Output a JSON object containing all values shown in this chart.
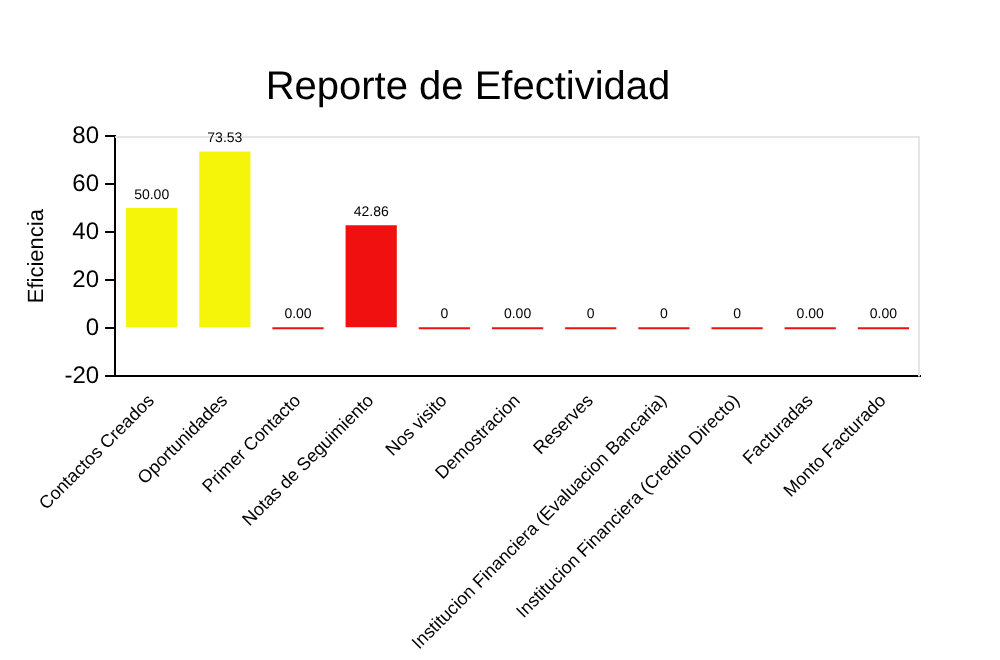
{
  "chart_data": {
    "type": "bar",
    "title": "Reporte de Efectividad",
    "ylabel": "Eficiencia",
    "categories": [
      "Contactos Creados",
      "Oportunidades",
      "Primer Contacto",
      "Notas de Seguimiento",
      "Nos visito",
      "Demostracion",
      "Reserves",
      "Institucion Financiera (Evaluacion Bancaria)",
      "Institucion Financiera (Credito Directo)",
      "Facturadas",
      "Monto Facturado"
    ],
    "values": [
      50,
      73.53,
      0,
      42.86,
      0,
      0,
      0,
      0,
      0,
      0,
      0
    ],
    "value_labels": [
      "50.00",
      "73.53",
      "0.00",
      "42.86",
      "0",
      "0.00",
      "0",
      "0",
      "0",
      "0.00",
      "0.00"
    ],
    "colors": [
      "#f5f50a",
      "#f5f50a",
      "#f01010",
      "#f01010",
      "#f01010",
      "#f01010",
      "#f01010",
      "#f01010",
      "#f01010",
      "#f01010",
      "#f01010"
    ],
    "ylim": [
      -20,
      80
    ],
    "yticks": [
      -20,
      0,
      20,
      40,
      60,
      80
    ],
    "grid": false,
    "legend": false
  }
}
